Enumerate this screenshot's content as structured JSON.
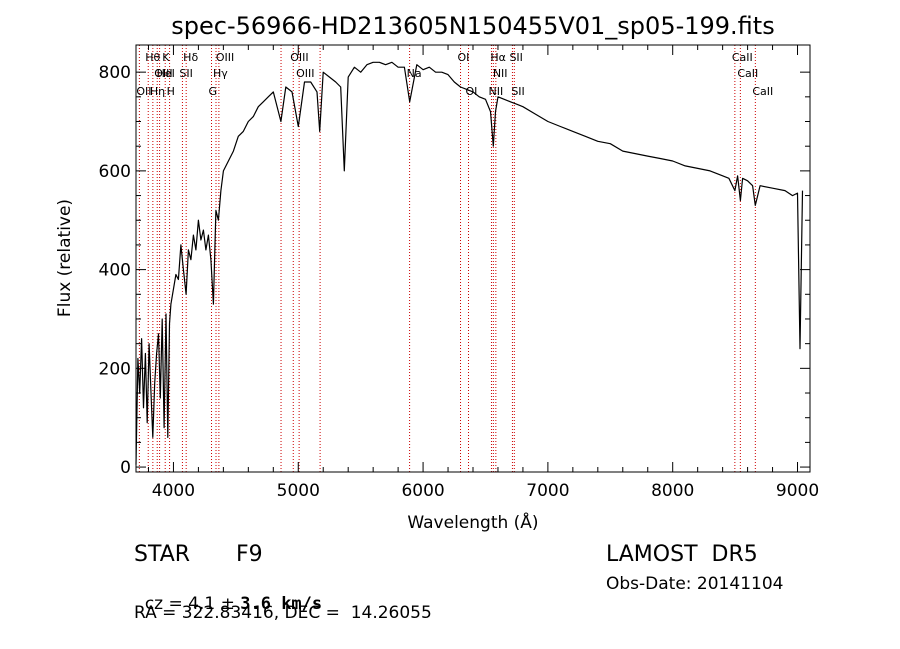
{
  "chart_data": {
    "type": "line",
    "title": "spec-56966-HD213605N150455V01_sp05-199.fits",
    "xlabel": "Wavelength (Å)",
    "ylabel": "Flux (relative)",
    "xlim": [
      3700,
      9100
    ],
    "ylim": [
      -10,
      855
    ],
    "xticks": [
      4000,
      5000,
      6000,
      7000,
      8000,
      9000
    ],
    "yticks": [
      0,
      200,
      400,
      600,
      800
    ],
    "grid": false,
    "line_color": "#000000",
    "marker_color": "#cc0000",
    "series": [
      {
        "x": [
          3700,
          3715,
          3730,
          3745,
          3760,
          3775,
          3790,
          3805,
          3820,
          3835,
          3850,
          3865,
          3880,
          3895,
          3910,
          3925,
          3940,
          3955,
          3968,
          3980,
          4000,
          4020,
          4040,
          4060,
          4080,
          4101,
          4120,
          4140,
          4160,
          4180,
          4200,
          4220,
          4240,
          4260,
          4280,
          4300,
          4320,
          4340,
          4360,
          4380,
          4400,
          4440,
          4480,
          4520,
          4560,
          4600,
          4640,
          4680,
          4720,
          4760,
          4800,
          4861,
          4900,
          4950,
          5000,
          5050,
          5100,
          5150,
          5172,
          5200,
          5250,
          5300,
          5340,
          5369,
          5400,
          5450,
          5500,
          5550,
          5600,
          5650,
          5700,
          5750,
          5800,
          5850,
          5893,
          5950,
          6000,
          6050,
          6100,
          6150,
          6200,
          6250,
          6300,
          6350,
          6400,
          6450,
          6500,
          6540,
          6563,
          6580,
          6600,
          6650,
          6700,
          6750,
          6800,
          6900,
          7000,
          7100,
          7200,
          7300,
          7400,
          7500,
          7600,
          7700,
          7800,
          7900,
          8000,
          8100,
          8200,
          8300,
          8400,
          8450,
          8498,
          8520,
          8542,
          8560,
          8600,
          8640,
          8662,
          8700,
          8800,
          8900,
          8960,
          9000,
          9020,
          9040
        ],
        "y": [
          5,
          220,
          150,
          260,
          120,
          230,
          90,
          250,
          150,
          60,
          170,
          230,
          270,
          140,
          300,
          80,
          310,
          60,
          290,
          330,
          360,
          390,
          380,
          450,
          400,
          350,
          440,
          420,
          470,
          440,
          500,
          460,
          480,
          440,
          470,
          420,
          330,
          520,
          500,
          560,
          600,
          620,
          640,
          670,
          680,
          700,
          710,
          730,
          740,
          750,
          760,
          700,
          770,
          760,
          690,
          780,
          780,
          760,
          680,
          800,
          790,
          780,
          770,
          600,
          790,
          810,
          800,
          815,
          820,
          820,
          815,
          820,
          810,
          810,
          740,
          815,
          805,
          810,
          800,
          800,
          795,
          780,
          770,
          765,
          760,
          750,
          745,
          720,
          650,
          720,
          750,
          745,
          740,
          735,
          730,
          715,
          700,
          690,
          680,
          670,
          660,
          655,
          640,
          635,
          630,
          625,
          620,
          610,
          605,
          600,
          590,
          585,
          560,
          590,
          540,
          585,
          580,
          570,
          530,
          570,
          565,
          560,
          550,
          555,
          240,
          560
        ]
      }
    ],
    "lines": [
      {
        "x": 3727,
        "label": "OII",
        "row": 3
      },
      {
        "x": 3798,
        "label": "Hθ",
        "row": 1
      },
      {
        "x": 3835,
        "label": "Hη",
        "row": 3
      },
      {
        "x": 3870,
        "label": "OIII",
        "row": 2
      },
      {
        "x": 3889,
        "label": "HeI",
        "row": 2
      },
      {
        "x": 3934,
        "label": "K",
        "row": 1
      },
      {
        "x": 3969,
        "label": "H",
        "row": 3
      },
      {
        "x": 4072,
        "label": "SII",
        "row": 2
      },
      {
        "x": 4102,
        "label": "Hδ",
        "row": 1
      },
      {
        "x": 4305,
        "label": "G",
        "row": 3
      },
      {
        "x": 4341,
        "label": "Hγ",
        "row": 2
      },
      {
        "x": 4364,
        "label": "OIII",
        "row": 1
      },
      {
        "x": 4862,
        "label": "",
        "row": 0
      },
      {
        "x": 4960,
        "label": "OIII",
        "row": 1
      },
      {
        "x": 5007,
        "label": "OIII",
        "row": 2
      },
      {
        "x": 5175,
        "label": "",
        "row": 0
      },
      {
        "x": 5892,
        "label": "Na",
        "row": 2
      },
      {
        "x": 6300,
        "label": "OI",
        "row": 1
      },
      {
        "x": 6364,
        "label": "OI",
        "row": 3
      },
      {
        "x": 6548,
        "label": "NII",
        "row": 3
      },
      {
        "x": 6563,
        "label": "Hα",
        "row": 1
      },
      {
        "x": 6583,
        "label": "NII",
        "row": 2
      },
      {
        "x": 6716,
        "label": "SII",
        "row": 1
      },
      {
        "x": 6731,
        "label": "SII",
        "row": 3
      },
      {
        "x": 8498,
        "label": "CaII",
        "row": 1
      },
      {
        "x": 8542,
        "label": "CaII",
        "row": 2
      },
      {
        "x": 8662,
        "label": "CaII",
        "row": 3
      }
    ]
  },
  "info": {
    "class_label": "STAR",
    "subclass": "F9",
    "survey": "LAMOST  DR5",
    "cz_prefix": "cz = 4.1 ± ",
    "cz_error": "3.6",
    "cz_unit": " km/s",
    "obs_date": "Obs-Date: 20141104",
    "coords": "RA = 322.83416, DEC =  14.26055"
  }
}
